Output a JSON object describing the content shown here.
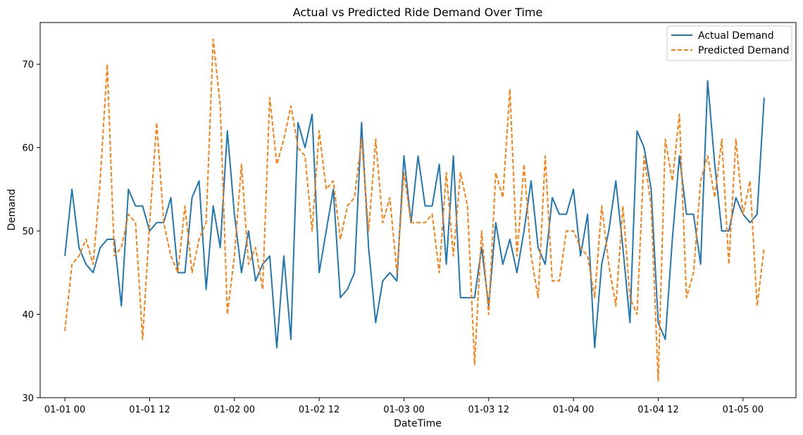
{
  "chart_data": {
    "type": "line",
    "title": "Actual vs Predicted Ride Demand Over Time",
    "xlabel": "DateTime",
    "ylabel": "Demand",
    "x_start": "2023-01-01 00:00",
    "x_step_hours": 1,
    "x_ticks": [
      {
        "hour": 0,
        "label": "01-01 00"
      },
      {
        "hour": 12,
        "label": "01-01 12"
      },
      {
        "hour": 24,
        "label": "01-02 00"
      },
      {
        "hour": 36,
        "label": "01-02 12"
      },
      {
        "hour": 48,
        "label": "01-03 00"
      },
      {
        "hour": 60,
        "label": "01-03 12"
      },
      {
        "hour": 72,
        "label": "01-04 00"
      },
      {
        "hour": 84,
        "label": "01-04 12"
      },
      {
        "hour": 96,
        "label": "01-05 00"
      }
    ],
    "xlim": [
      -3.5,
      103.5
    ],
    "ylim": [
      30,
      75
    ],
    "y_ticks": [
      30,
      40,
      50,
      60,
      70
    ],
    "grid": false,
    "legend_position": "top-right",
    "series": [
      {
        "name": "Actual Demand",
        "color": "#1f77b4",
        "style": "solid",
        "values": [
          47,
          55,
          48,
          46,
          45,
          48,
          49,
          49,
          41,
          55,
          53,
          53,
          50,
          51,
          51,
          54,
          45,
          45,
          54,
          56,
          43,
          53,
          48,
          62,
          52,
          45,
          50,
          44,
          46,
          47,
          36,
          47,
          37,
          63,
          60,
          64,
          45,
          50,
          55,
          42,
          43,
          45,
          63,
          48,
          39,
          44,
          45,
          44,
          59,
          51,
          59,
          53,
          53,
          58,
          46,
          59,
          42,
          42,
          42,
          48,
          41,
          51,
          46,
          49,
          45,
          50,
          56,
          48,
          46,
          54,
          52,
          52,
          55,
          47,
          52,
          36,
          46,
          50,
          56,
          48,
          39,
          62,
          60,
          55,
          39,
          37,
          49,
          59,
          52,
          52,
          46,
          68,
          58,
          50,
          50,
          54,
          52,
          51,
          52,
          66
        ]
      },
      {
        "name": "Predicted Demand",
        "color": "#ff7f0e",
        "style": "dashed",
        "values": [
          38,
          46,
          47,
          49,
          46,
          56,
          70,
          47,
          48,
          52,
          51,
          37,
          51,
          63,
          51,
          47,
          45,
          53,
          45,
          49,
          51,
          73,
          65,
          40,
          47,
          58,
          46,
          48,
          43,
          66,
          58,
          61,
          65,
          60,
          59,
          50,
          62,
          55,
          56,
          49,
          53,
          54,
          61,
          50,
          61,
          51,
          54,
          45,
          57,
          51,
          51,
          51,
          52,
          45,
          57,
          47,
          57,
          53,
          34,
          50,
          40,
          57,
          54,
          67,
          47,
          58,
          47,
          42,
          59,
          44,
          44,
          50,
          50,
          48,
          47,
          42,
          53,
          46,
          41,
          53,
          42,
          40,
          59,
          53,
          32,
          61,
          56,
          64,
          42,
          45,
          56,
          59,
          54,
          61,
          46,
          61,
          52,
          56,
          41,
          48
        ]
      }
    ]
  }
}
